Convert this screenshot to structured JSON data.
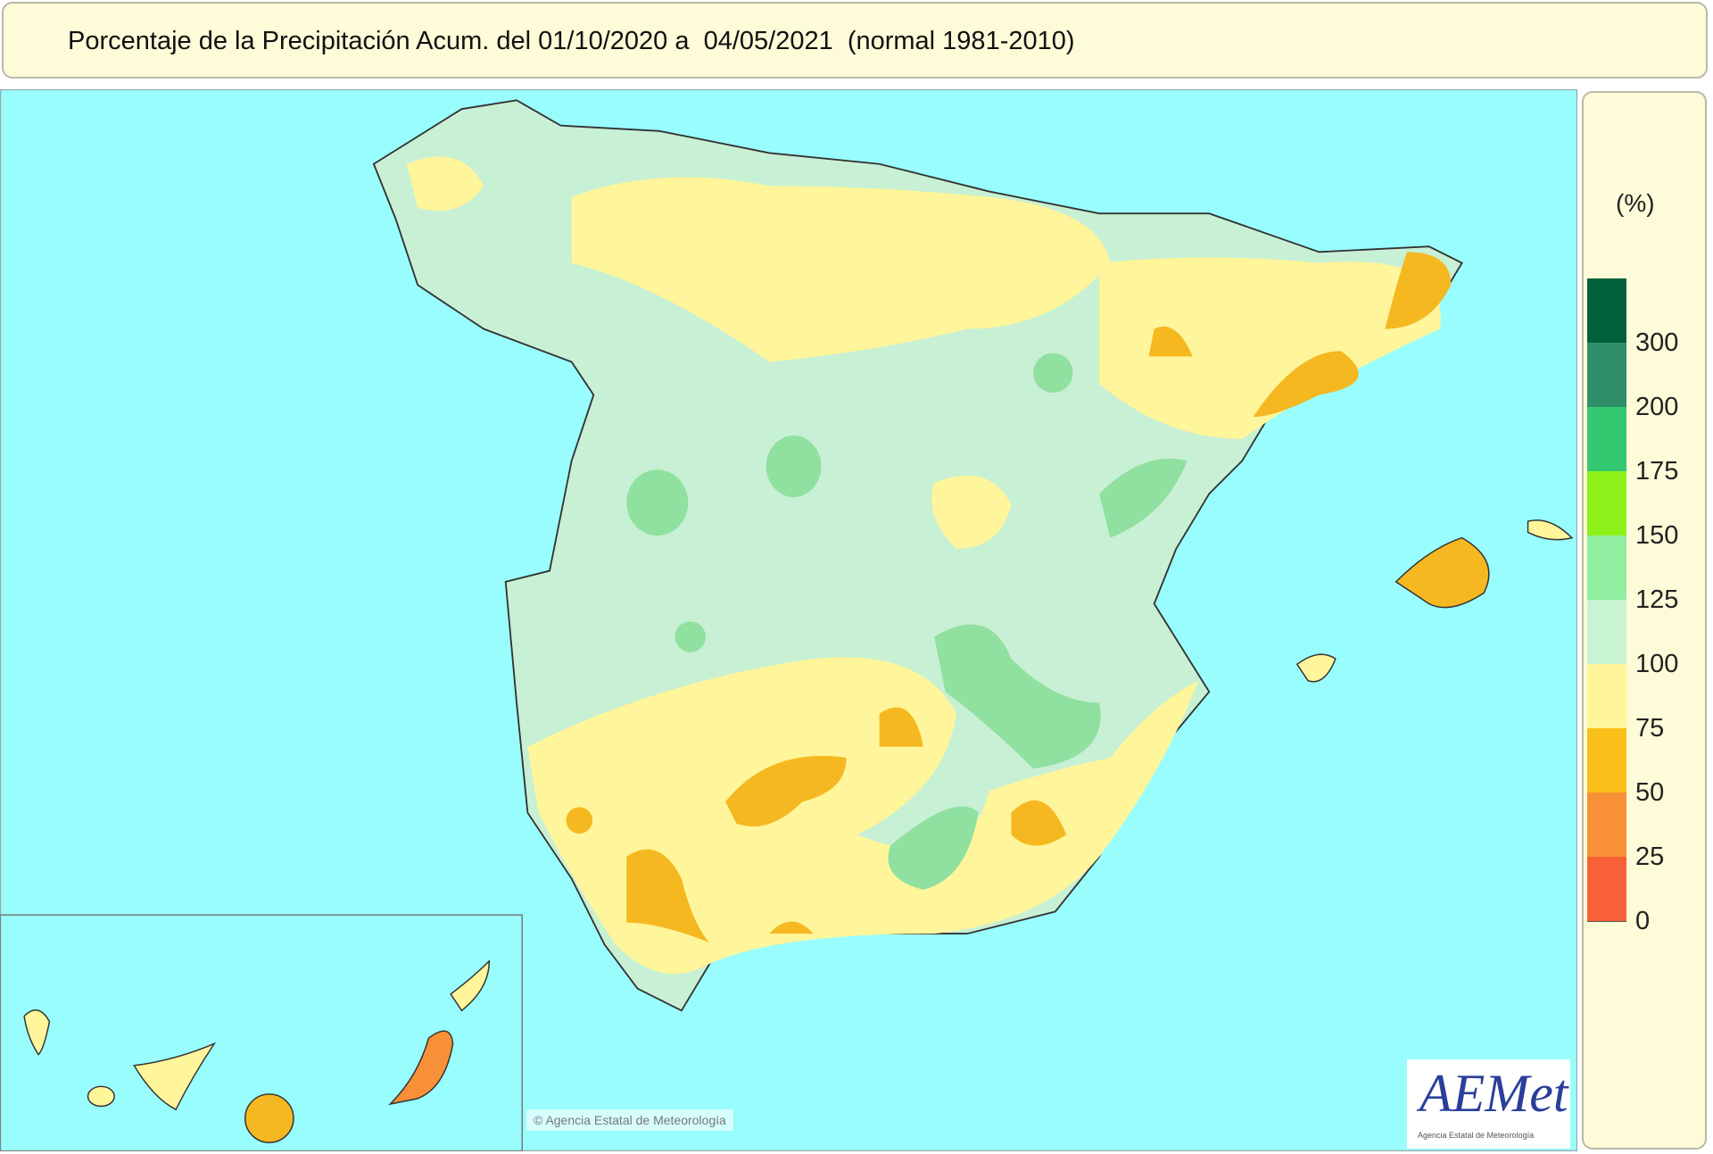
{
  "title": "Porcentaje de la Precipitación Acum. del 01/10/2020 a  04/05/2021  (normal 1981-2010)",
  "legend": {
    "unit": "(%)",
    "bins": [
      {
        "label": "300",
        "color": "#00603a"
      },
      {
        "label": "200",
        "color": "#2f8f6a"
      },
      {
        "label": "175",
        "color": "#33c870"
      },
      {
        "label": "150",
        "color": "#8ef21a"
      },
      {
        "label": "125",
        "color": "#90eea0"
      },
      {
        "label": "100",
        "color": "#c8f4d4"
      },
      {
        "label": "75",
        "color": "#fff59a"
      },
      {
        "label": "50",
        "color": "#f8c018"
      },
      {
        "label": "25",
        "color": "#f89038"
      },
      {
        "label": "0",
        "color": "#f86038"
      }
    ]
  },
  "colors": {
    "sea": "#99fdfd",
    "panel": "#fdfbd8"
  },
  "watermark": "Agencia Estatal de Meteorología",
  "logo": {
    "name": "AEMet",
    "subtitle": "Agencia Estatal de Meteorología"
  }
}
